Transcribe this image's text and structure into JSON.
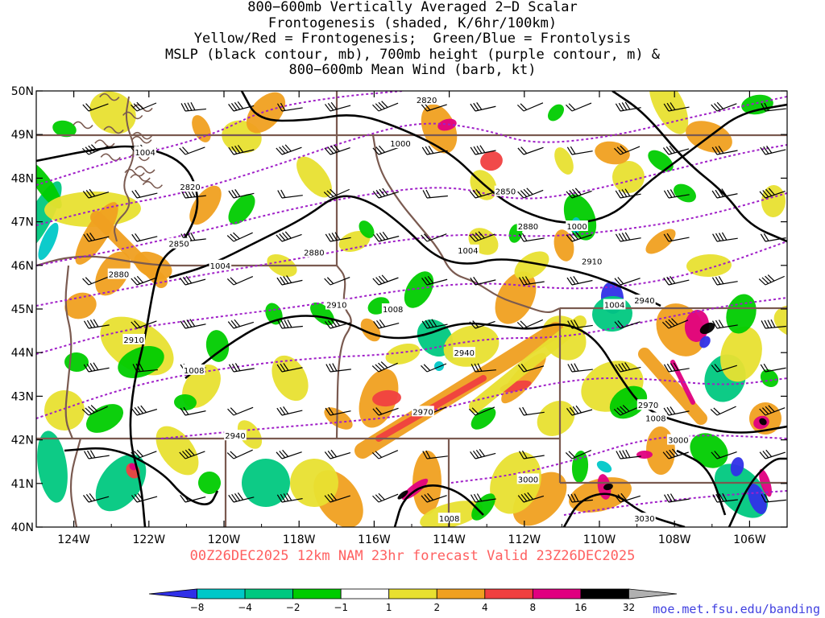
{
  "title_lines": [
    "800−600mb Vertically Averaged 2−D Scalar",
    "Frontogenesis (shaded, K/6hr/100km)",
    "Yellow/Red = Frontogenesis;  Green/Blue = Frontolysis",
    "MSLP (black contour, mb), 700mb height (purple contour, m) &",
    "800−600mb Mean Wind (barb, kt)"
  ],
  "footer": "00Z26DEC2025 12km NAM 23hr forecast Valid 23Z26DEC2025",
  "credit": "moe.met.fsu.edu/banding",
  "map": {
    "lat_labels": [
      "50N",
      "49N",
      "48N",
      "47N",
      "46N",
      "45N",
      "44N",
      "43N",
      "42N",
      "41N",
      "40N"
    ],
    "lon_labels": [
      "124W",
      "122W",
      "120W",
      "118W",
      "116W",
      "114W",
      "112W",
      "110W",
      "108W",
      "106W"
    ],
    "mslp_labels": [
      {
        "text": "1000",
        "lon": -115.3,
        "lat": 48.8
      },
      {
        "text": "1004",
        "lon": -122.1,
        "lat": 48.6
      },
      {
        "text": "1004",
        "lon": -120.1,
        "lat": 46.0
      },
      {
        "text": "1004",
        "lon": -113.5,
        "lat": 46.35
      },
      {
        "text": "1000",
        "lon": -110.6,
        "lat": 46.9
      },
      {
        "text": "1008",
        "lon": -115.5,
        "lat": 45.0
      },
      {
        "text": "1008",
        "lon": -120.8,
        "lat": 43.6
      },
      {
        "text": "1004",
        "lon": -109.6,
        "lat": 45.1
      },
      {
        "text": "1008",
        "lon": -108.5,
        "lat": 42.5
      },
      {
        "text": "1008",
        "lon": -114.0,
        "lat": 40.2
      }
    ],
    "height_labels": [
      {
        "text": "2820",
        "lon": -114.6,
        "lat": 49.8
      },
      {
        "text": "2820",
        "lon": -120.9,
        "lat": 47.8
      },
      {
        "text": "2850",
        "lon": -121.2,
        "lat": 46.5
      },
      {
        "text": "2850",
        "lon": -112.5,
        "lat": 47.7
      },
      {
        "text": "2880",
        "lon": -122.8,
        "lat": 45.8
      },
      {
        "text": "2880",
        "lon": -117.6,
        "lat": 46.3
      },
      {
        "text": "2880",
        "lon": -111.9,
        "lat": 46.9
      },
      {
        "text": "2910",
        "lon": -122.4,
        "lat": 44.3
      },
      {
        "text": "2910",
        "lon": -117.0,
        "lat": 45.1
      },
      {
        "text": "2910",
        "lon": -110.2,
        "lat": 46.1
      },
      {
        "text": "2940",
        "lon": -119.7,
        "lat": 42.1
      },
      {
        "text": "2940",
        "lon": -113.6,
        "lat": 44.0
      },
      {
        "text": "2940",
        "lon": -108.8,
        "lat": 45.2
      },
      {
        "text": "2970",
        "lon": -114.7,
        "lat": 42.65
      },
      {
        "text": "2970",
        "lon": -108.7,
        "lat": 42.8
      },
      {
        "text": "3000",
        "lon": -111.9,
        "lat": 41.1
      },
      {
        "text": "3000",
        "lon": -107.9,
        "lat": 42.0
      },
      {
        "text": "3030",
        "lon": -108.8,
        "lat": 40.2
      }
    ]
  },
  "colorbar": {
    "colors": [
      "#3030e8",
      "#00c8c8",
      "#00c880",
      "#00cc00",
      "#ffffff",
      "#e8e030",
      "#f0a020",
      "#f04040",
      "#e00080",
      "#000000",
      "#b0b0b0"
    ],
    "labels": [
      "−8",
      "−4",
      "−2",
      "−1",
      "1",
      "2",
      "4",
      "8",
      "16",
      "32"
    ]
  }
}
